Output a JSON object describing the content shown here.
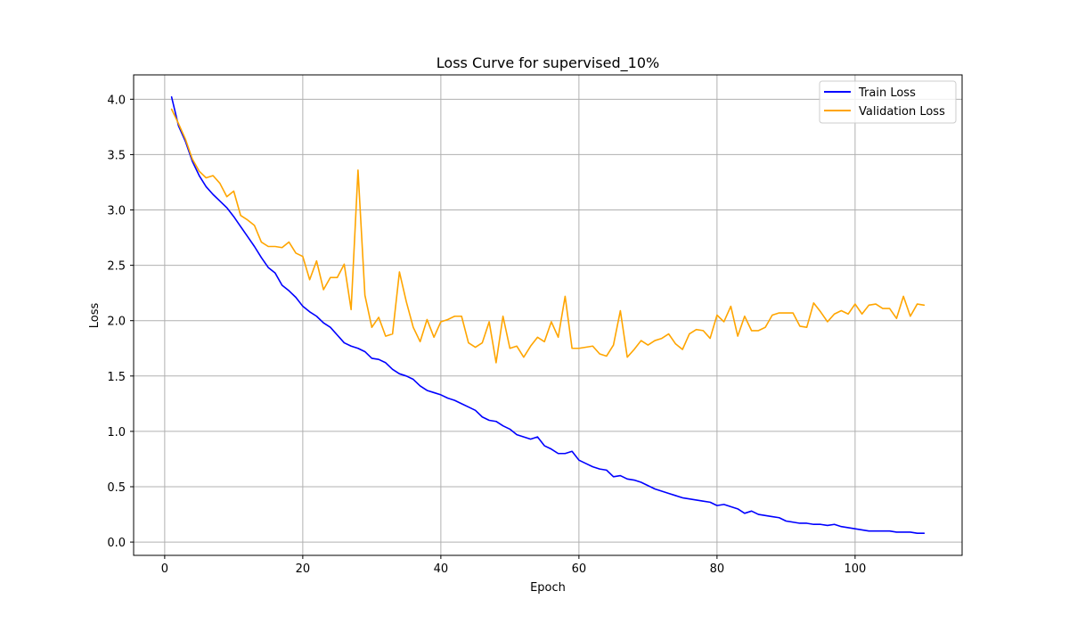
{
  "chart_data": {
    "type": "line",
    "title": "Loss Curve for supervised_10%",
    "xlabel": "Epoch",
    "ylabel": "Loss",
    "xlim": [
      -4.5,
      115.5
    ],
    "ylim": [
      -0.12,
      4.22
    ],
    "xticks": [
      0,
      20,
      40,
      60,
      80,
      100
    ],
    "yticks": [
      0.0,
      0.5,
      1.0,
      1.5,
      2.0,
      2.5,
      3.0,
      3.5,
      4.0
    ],
    "xtick_labels": [
      "0",
      "20",
      "40",
      "60",
      "80",
      "100"
    ],
    "ytick_labels": [
      "0.0",
      "0.5",
      "1.0",
      "1.5",
      "2.0",
      "2.5",
      "3.0",
      "3.5",
      "4.0"
    ],
    "grid": true,
    "legend_position": "top-right",
    "series": [
      {
        "name": "Train Loss",
        "color": "#0000ff",
        "x_start": 1,
        "values": [
          4.02,
          3.76,
          3.62,
          3.44,
          3.31,
          3.21,
          3.14,
          3.08,
          3.02,
          2.94,
          2.85,
          2.76,
          2.67,
          2.57,
          2.48,
          2.43,
          2.32,
          2.27,
          2.21,
          2.13,
          2.08,
          2.04,
          1.98,
          1.94,
          1.87,
          1.8,
          1.77,
          1.75,
          1.72,
          1.66,
          1.65,
          1.62,
          1.56,
          1.52,
          1.5,
          1.47,
          1.41,
          1.37,
          1.35,
          1.33,
          1.3,
          1.28,
          1.25,
          1.22,
          1.19,
          1.13,
          1.1,
          1.09,
          1.05,
          1.02,
          0.97,
          0.95,
          0.93,
          0.95,
          0.87,
          0.84,
          0.8,
          0.8,
          0.82,
          0.74,
          0.71,
          0.68,
          0.66,
          0.65,
          0.59,
          0.6,
          0.57,
          0.56,
          0.54,
          0.51,
          0.48,
          0.46,
          0.44,
          0.42,
          0.4,
          0.39,
          0.38,
          0.37,
          0.36,
          0.33,
          0.34,
          0.32,
          0.3,
          0.26,
          0.28,
          0.25,
          0.24,
          0.23,
          0.22,
          0.19,
          0.18,
          0.17,
          0.17,
          0.16,
          0.16,
          0.15,
          0.16,
          0.14,
          0.13,
          0.12,
          0.11,
          0.1,
          0.1,
          0.1,
          0.1,
          0.09,
          0.09,
          0.09,
          0.08,
          0.08
        ]
      },
      {
        "name": "Validation Loss",
        "color": "#ffa500",
        "x_start": 1,
        "values": [
          3.91,
          3.78,
          3.64,
          3.46,
          3.35,
          3.29,
          3.31,
          3.24,
          3.12,
          3.17,
          2.95,
          2.91,
          2.86,
          2.71,
          2.67,
          2.67,
          2.66,
          2.71,
          2.61,
          2.58,
          2.37,
          2.54,
          2.28,
          2.39,
          2.39,
          2.51,
          2.1,
          3.36,
          2.23,
          1.94,
          2.03,
          1.86,
          1.88,
          2.44,
          2.17,
          1.94,
          1.81,
          2.01,
          1.85,
          1.99,
          2.01,
          2.04,
          2.04,
          1.8,
          1.76,
          1.8,
          1.99,
          1.62,
          2.04,
          1.75,
          1.77,
          1.67,
          1.77,
          1.85,
          1.81,
          1.99,
          1.85,
          2.22,
          1.75,
          1.75,
          1.76,
          1.77,
          1.7,
          1.68,
          1.78,
          2.09,
          1.67,
          1.74,
          1.82,
          1.78,
          1.82,
          1.84,
          1.88,
          1.79,
          1.74,
          1.88,
          1.92,
          1.91,
          1.84,
          2.05,
          1.99,
          2.13,
          1.86,
          2.04,
          1.91,
          1.91,
          1.94,
          2.05,
          2.07,
          2.07,
          2.07,
          1.95,
          1.94,
          2.16,
          2.08,
          1.99,
          2.06,
          2.09,
          2.06,
          2.15,
          2.06,
          2.14,
          2.15,
          2.11,
          2.11,
          2.02,
          2.22,
          2.04,
          2.15,
          2.14
        ]
      }
    ]
  }
}
